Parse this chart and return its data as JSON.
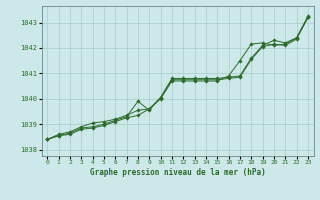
{
  "x": [
    0,
    1,
    2,
    3,
    4,
    5,
    6,
    7,
    8,
    9,
    10,
    11,
    12,
    13,
    14,
    15,
    16,
    17,
    18,
    19,
    20,
    21,
    22,
    23
  ],
  "line1": [
    1038.4,
    1038.55,
    1038.6,
    1038.8,
    1038.85,
    1038.95,
    1039.1,
    1039.25,
    1039.35,
    1039.6,
    1040.05,
    1040.8,
    1040.8,
    1040.8,
    1040.8,
    1040.8,
    1040.85,
    1040.9,
    1041.6,
    1042.1,
    1042.3,
    1042.2,
    1042.4,
    1043.25
  ],
  "line2": [
    1038.4,
    1038.55,
    1038.65,
    1038.85,
    1038.9,
    1039.0,
    1039.15,
    1039.3,
    1039.9,
    1039.55,
    1040.05,
    1040.75,
    1040.75,
    1040.75,
    1040.75,
    1040.75,
    1040.8,
    1040.85,
    1041.55,
    1042.05,
    1042.15,
    1042.1,
    1042.35,
    1043.2
  ],
  "line3": [
    1038.4,
    1038.6,
    1038.7,
    1038.9,
    1039.05,
    1039.1,
    1039.2,
    1039.35,
    1039.55,
    1039.6,
    1040.0,
    1040.7,
    1040.7,
    1040.7,
    1040.7,
    1040.7,
    1040.9,
    1041.5,
    1042.15,
    1042.2,
    1042.1,
    1042.15,
    1042.4,
    1043.2
  ],
  "bg_color": "#cce8e8",
  "grid_color": "#aacccc",
  "line_color": "#2d6a2d",
  "marker_color": "#2d6a2d",
  "text_color": "#2d6a2d",
  "xlabel": "Graphe pression niveau de la mer (hPa)",
  "ylim_min": 1037.75,
  "ylim_max": 1043.65,
  "yticks": [
    1038,
    1039,
    1040,
    1041,
    1042,
    1043
  ],
  "xticks": [
    0,
    1,
    2,
    3,
    4,
    5,
    6,
    7,
    8,
    9,
    10,
    11,
    12,
    13,
    14,
    15,
    16,
    17,
    18,
    19,
    20,
    21,
    22,
    23
  ]
}
